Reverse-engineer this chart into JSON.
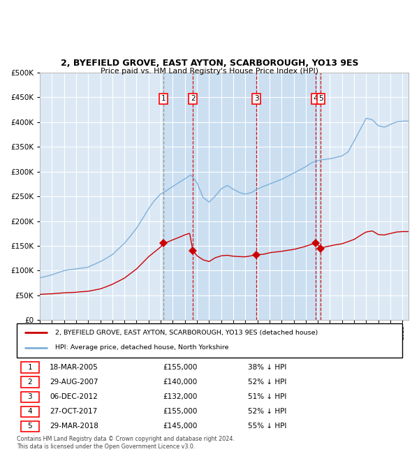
{
  "title_line1": "2, BYEFIELD GROVE, EAST AYTON, SCARBOROUGH, YO13 9ES",
  "title_line2": "Price paid vs. HM Land Registry's House Price Index (HPI)",
  "background_color": "#dce9f5",
  "plot_bg_color": "#dce9f5",
  "red_line_color": "#cc0000",
  "blue_line_color": "#7fb0d8",
  "grid_color": "#ffffff",
  "ylim": [
    0,
    500000
  ],
  "yticks": [
    0,
    50000,
    100000,
    150000,
    200000,
    250000,
    300000,
    350000,
    400000,
    450000,
    500000
  ],
  "sale_dates_decimal": [
    2005.21,
    2007.66,
    2012.93,
    2017.82,
    2018.25
  ],
  "sale_prices": [
    155000,
    140000,
    132000,
    155000,
    145000
  ],
  "sale_labels": [
    "1",
    "2",
    "3",
    "4",
    "5"
  ],
  "sale_table": [
    {
      "num": "1",
      "date": "18-MAR-2005",
      "price": "£155,000",
      "hpi": "38% ↓ HPI"
    },
    {
      "num": "2",
      "date": "29-AUG-2007",
      "price": "£140,000",
      "hpi": "52% ↓ HPI"
    },
    {
      "num": "3",
      "date": "06-DEC-2012",
      "price": "£132,000",
      "hpi": "51% ↓ HPI"
    },
    {
      "num": "4",
      "date": "27-OCT-2017",
      "price": "£155,000",
      "hpi": "52% ↓ HPI"
    },
    {
      "num": "5",
      "date": "29-MAR-2018",
      "price": "£145,000",
      "hpi": "55% ↓ HPI"
    }
  ],
  "legend_entries": [
    "2, BYEFIELD GROVE, EAST AYTON, SCARBOROUGH, YO13 9ES (detached house)",
    "HPI: Average price, detached house, North Yorkshire"
  ],
  "footer_line1": "Contains HM Land Registry data © Crown copyright and database right 2024.",
  "footer_line2": "This data is licensed under the Open Government Licence v3.0.",
  "xmin": 1995.0,
  "xmax": 2025.5
}
